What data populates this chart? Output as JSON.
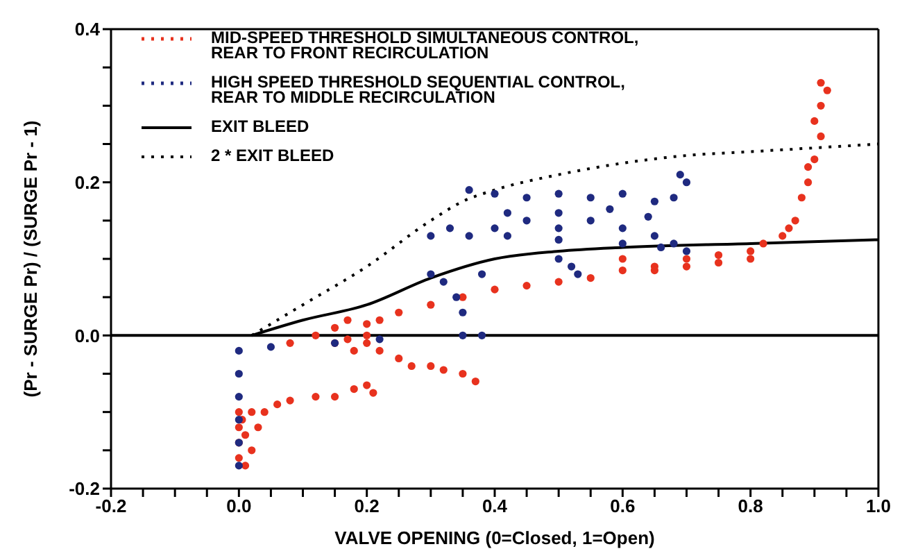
{
  "chart_data": {
    "type": "scatter",
    "xlabel": "VALVE OPENING (0=Closed, 1=Open)",
    "ylabel": "(Pr - SURGE Pr) / (SURGE Pr - 1)",
    "xlim": [
      -0.2,
      1.0
    ],
    "ylim": [
      -0.2,
      0.4
    ],
    "xticks": [
      -0.2,
      {
        "value": -0.15,
        "label": null
      },
      {
        "value": -0.1,
        "label": null
      },
      {
        "value": -0.05,
        "label": null
      },
      "0.0",
      {
        "value": 0.05,
        "label": null
      },
      {
        "value": 0.1,
        "label": null
      },
      {
        "value": 0.15,
        "label": null
      },
      0.2,
      {
        "value": 0.25,
        "label": null
      },
      {
        "value": 0.3,
        "label": null
      },
      {
        "value": 0.35,
        "label": null
      },
      0.4,
      {
        "value": 0.45,
        "label": null
      },
      {
        "value": 0.5,
        "label": null
      },
      {
        "value": 0.55,
        "label": null
      },
      0.6,
      {
        "value": 0.65,
        "label": null
      },
      {
        "value": 0.7,
        "label": null
      },
      {
        "value": 0.75,
        "label": null
      },
      0.8,
      {
        "value": 0.85,
        "label": null
      },
      {
        "value": 0.9,
        "label": null
      },
      {
        "value": 0.95,
        "label": null
      },
      "1.0"
    ],
    "yticks": [
      -0.2,
      {
        "value": -0.15,
        "label": null
      },
      {
        "value": -0.1,
        "label": null
      },
      {
        "value": -0.05,
        "label": null
      },
      {
        "value": 0,
        "label": "0.0"
      },
      {
        "value": 0.05,
        "label": null
      },
      {
        "value": 0.1,
        "label": null
      },
      {
        "value": 0.15,
        "label": null
      },
      0.2,
      {
        "value": 0.25,
        "label": null
      },
      {
        "value": 0.3,
        "label": null
      },
      {
        "value": 0.35,
        "label": null
      },
      0.4
    ],
    "legend": "top left",
    "marker": "circle",
    "ref_lines": [
      {
        "axis": "y",
        "value": 0,
        "color": "#000000"
      }
    ],
    "series": [
      {
        "name": "MID-SPEED THRESHOLD SIMULTANEOUS CONTROL, REAR TO FRONT RECIRCULATION",
        "color": "#e8321e",
        "x": [
          0,
          0,
          0,
          0,
          0.01,
          0.005,
          0.01,
          0.02,
          0.03,
          0.02,
          0.04,
          0.06,
          0.08,
          0.12,
          0.15,
          0.18,
          0.21,
          0.2,
          0.08,
          0.12,
          0.15,
          0.17,
          0.2,
          0.22,
          0.25,
          0.3,
          0.35,
          0.4,
          0.45,
          0.5,
          0.55,
          0.6,
          0.65,
          0.7,
          0.75,
          0.8,
          0.82,
          0.85,
          0.87,
          0.88,
          0.89,
          0.9,
          0.91,
          0.9,
          0.91,
          0.91,
          0.92,
          0.89,
          0.86,
          0.8,
          0.75,
          0.7,
          0.65,
          0.6,
          0.17,
          0.2,
          0.22,
          0.25,
          0.27,
          0.3,
          0.32,
          0.35,
          0.37,
          0.18,
          0.2,
          0.15
        ],
        "values": [
          -0.1,
          -0.12,
          -0.14,
          -0.16,
          -0.17,
          -0.11,
          -0.13,
          -0.15,
          -0.12,
          -0.1,
          -0.1,
          -0.09,
          -0.085,
          -0.08,
          -0.08,
          -0.07,
          -0.075,
          -0.065,
          -0.01,
          0,
          0.01,
          0.02,
          0.015,
          0.02,
          0.03,
          0.04,
          0.05,
          0.06,
          0.065,
          0.07,
          0.075,
          0.085,
          0.09,
          0.1,
          0.105,
          0.11,
          0.12,
          0.13,
          0.15,
          0.18,
          0.2,
          0.23,
          0.26,
          0.28,
          0.3,
          0.33,
          0.32,
          0.22,
          0.14,
          0.1,
          0.095,
          0.09,
          0.085,
          0.1,
          -0.005,
          -0.01,
          -0.02,
          -0.03,
          -0.04,
          -0.04,
          -0.045,
          -0.05,
          -0.06,
          -0.02,
          0,
          -0.01
        ]
      },
      {
        "name": "HIGH SPEED THRESHOLD SEQUENTIAL CONTROL, REAR TO MIDDLE RECIRCULATION",
        "color": "#1f2a80",
        "x": [
          0,
          0,
          0,
          0,
          0,
          0,
          0.05,
          0.15,
          0.22,
          0.38,
          0.35,
          0.35,
          0.34,
          0.32,
          0.3,
          0.38,
          0.3,
          0.33,
          0.36,
          0.4,
          0.45,
          0.5,
          0.55,
          0.6,
          0.65,
          0.68,
          0.7,
          0.36,
          0.4,
          0.45,
          0.5,
          0.55,
          0.6,
          0.65,
          0.68,
          0.7,
          0.69,
          0.42,
          0.5,
          0.58,
          0.64,
          0.42,
          0.5,
          0.6,
          0.66,
          0.5,
          0.53,
          0.52
        ],
        "values": [
          -0.02,
          -0.05,
          -0.08,
          -0.11,
          -0.14,
          -0.17,
          -0.015,
          -0.01,
          -0.005,
          0,
          0,
          0.03,
          0.05,
          0.07,
          0.08,
          0.08,
          0.13,
          0.14,
          0.13,
          0.14,
          0.15,
          0.14,
          0.15,
          0.14,
          0.13,
          0.12,
          0.11,
          0.19,
          0.185,
          0.18,
          0.185,
          0.18,
          0.185,
          0.175,
          0.18,
          0.2,
          0.21,
          0.16,
          0.16,
          0.165,
          0.155,
          0.13,
          0.125,
          0.12,
          0.115,
          0.1,
          0.08,
          0.09
        ]
      },
      {
        "name": "EXIT BLEED",
        "type": "line",
        "color": "#000000",
        "line_style": "solid",
        "marker": "none",
        "x": [
          0.02,
          0.1,
          0.2,
          0.3,
          0.4,
          0.5,
          0.6,
          0.8,
          1.0
        ],
        "values": [
          0,
          0.02,
          0.04,
          0.075,
          0.1,
          0.11,
          0.115,
          0.12,
          0.125
        ]
      },
      {
        "name": "2 * EXIT BLEED",
        "type": "line",
        "color": "#000000",
        "line_style": "dotted",
        "marker": "none",
        "x": [
          0.02,
          0.1,
          0.2,
          0.3,
          0.35,
          0.4,
          0.5,
          0.6,
          0.7,
          0.8,
          1.0
        ],
        "values": [
          0,
          0.04,
          0.09,
          0.15,
          0.175,
          0.19,
          0.21,
          0.225,
          0.235,
          0.24,
          0.25
        ]
      }
    ]
  }
}
